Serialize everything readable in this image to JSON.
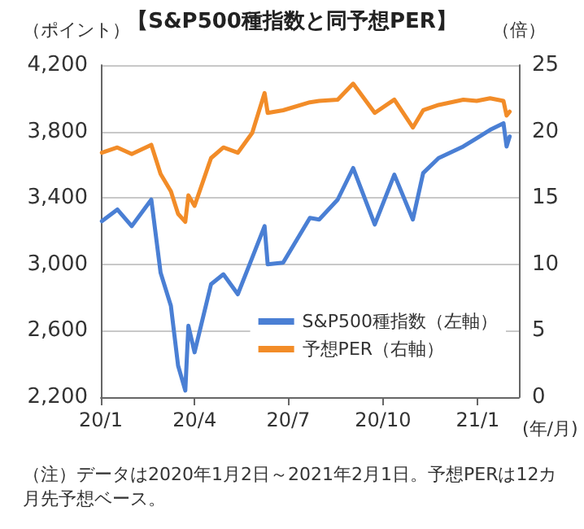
{
  "chart_data": {
    "type": "line",
    "title": "【S&P500種指数と同予想PER】",
    "ylabel": "（ポイント）",
    "y2label": "（倍）",
    "xlabel": "(年/月)",
    "x": [
      "2020-01-02",
      "2020-01-17",
      "2020-01-31",
      "2020-02-19",
      "2020-02-28",
      "2020-03-09",
      "2020-03-16",
      "2020-03-23",
      "2020-03-26",
      "2020-04-01",
      "2020-04-17",
      "2020-04-29",
      "2020-05-13",
      "2020-05-27",
      "2020-06-08",
      "2020-06-11",
      "2020-06-26",
      "2020-07-22",
      "2020-07-31",
      "2020-08-18",
      "2020-09-02",
      "2020-09-23",
      "2020-10-12",
      "2020-10-30",
      "2020-11-09",
      "2020-11-24",
      "2020-12-18",
      "2020-12-31",
      "2021-01-13",
      "2021-01-26",
      "2021-01-29",
      "2021-02-01"
    ],
    "series": [
      {
        "name": "S&P500種指数（左軸）",
        "color": "#4a7fd4",
        "values": [
          3260,
          3330,
          3230,
          3390,
          2950,
          2750,
          2390,
          2240,
          2630,
          2470,
          2880,
          2940,
          2820,
          3040,
          3230,
          3000,
          3010,
          3280,
          3270,
          3390,
          3580,
          3240,
          3540,
          3270,
          3550,
          3640,
          3710,
          3760,
          3810,
          3850,
          3710,
          3770
        ]
      },
      {
        "name": "予想PER（右軸）",
        "color": "#f28c28",
        "axis": "y2",
        "values": [
          18.4,
          18.8,
          18.3,
          19.0,
          16.8,
          15.5,
          13.8,
          13.2,
          15.2,
          14.4,
          18.0,
          18.8,
          18.4,
          19.9,
          22.9,
          21.4,
          21.6,
          22.2,
          22.3,
          22.4,
          23.6,
          21.4,
          22.4,
          20.3,
          21.6,
          22.0,
          22.4,
          22.3,
          22.5,
          22.3,
          21.2,
          21.5
        ]
      }
    ],
    "xlim": [
      "2020-01-01",
      "2021-02-10"
    ],
    "xticks": [
      {
        "value": "2020-01-01",
        "label": "20/1"
      },
      {
        "value": "2020-04-01",
        "label": "20/4"
      },
      {
        "value": "2020-07-01",
        "label": "20/7"
      },
      {
        "value": "2020-10-01",
        "label": "20/10"
      },
      {
        "value": "2021-01-01",
        "label": "21/1"
      }
    ],
    "ylim": [
      2200,
      4200
    ],
    "yticks": [
      {
        "value": 2200,
        "label": "2,200"
      },
      {
        "value": 2600,
        "label": "2,600"
      },
      {
        "value": 3000,
        "label": "3,000"
      },
      {
        "value": 3400,
        "label": "3,400"
      },
      {
        "value": 3800,
        "label": "3,800"
      },
      {
        "value": 4200,
        "label": "4,200"
      }
    ],
    "y2lim": [
      0,
      25
    ],
    "y2ticks": [
      0,
      5,
      10,
      15,
      20,
      25
    ],
    "grid": "y",
    "legend": "bottom right",
    "marker": "none",
    "line_style": "solid",
    "annotations": [
      "（注）データは2020年1月2日～2021年2月1日。予想PERは12カ月先予想ベース。"
    ]
  }
}
